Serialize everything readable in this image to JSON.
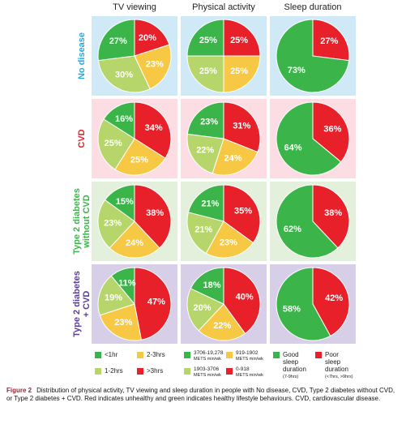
{
  "rows": [
    {
      "label": [
        "No disease"
      ],
      "color": "#29a8e0",
      "background": "#cfe9f7"
    },
    {
      "label": [
        "CVD"
      ],
      "color": "#e8202a",
      "background": "#fbdde3"
    },
    {
      "label": [
        "Type 2 diabetes",
        "without CVD"
      ],
      "color": "#3bb54a",
      "background": "#e3f1dc"
    },
    {
      "label": [
        "Type 2 diabetes",
        "+ CVD"
      ],
      "color": "#5b3c98",
      "background": "#d7cee7"
    }
  ],
  "chart_data": [
    {
      "type": "pie",
      "title": "TV viewing",
      "categories": [
        ">3hrs",
        "2-3hrs",
        "1-2hrs",
        "<1hr"
      ],
      "colors": [
        "#e8202a",
        "#f7c843",
        "#b6d66b",
        "#3bb54a"
      ],
      "pies": [
        {
          "values": [
            20,
            23,
            30,
            27
          ],
          "value_labels": [
            "20%",
            "23%",
            "30%",
            "27%"
          ]
        },
        {
          "values": [
            34,
            25,
            25,
            16
          ],
          "value_labels": [
            "34%",
            "25%",
            "25%",
            "16%"
          ]
        },
        {
          "values": [
            38,
            24,
            23,
            15
          ],
          "value_labels": [
            "38%",
            "24%",
            "23%",
            "15%"
          ]
        },
        {
          "values": [
            47,
            23,
            19,
            11
          ],
          "value_labels": [
            "47%",
            "23%",
            "19%",
            "11%"
          ]
        }
      ]
    },
    {
      "type": "pie",
      "title": "Physical activity",
      "categories": [
        "0-918",
        "919-1902",
        "1903-3706",
        "3706-19,278"
      ],
      "category_unit": "METS min/wk",
      "colors": [
        "#e8202a",
        "#f7c843",
        "#b6d66b",
        "#3bb54a"
      ],
      "pies": [
        {
          "values": [
            25,
            25,
            25,
            25
          ],
          "value_labels": [
            "25%",
            "25%",
            "25%",
            "25%"
          ]
        },
        {
          "values": [
            31,
            24,
            22,
            23
          ],
          "value_labels": [
            "31%",
            "24%",
            "22%",
            "23%"
          ]
        },
        {
          "values": [
            35,
            23,
            21,
            21
          ],
          "value_labels": [
            "35%",
            "23%",
            "21%",
            "21%"
          ]
        },
        {
          "values": [
            40,
            22,
            20,
            18
          ],
          "value_labels": [
            "40%",
            "22%",
            "20%",
            "18%"
          ]
        }
      ]
    },
    {
      "type": "pie",
      "title": "Sleep duration",
      "categories": [
        "Poor sleep duration",
        "Good sleep duration"
      ],
      "category_notes": [
        "(<7hrs, >9hrs)",
        "(7-9hrs)"
      ],
      "colors": [
        "#e8202a",
        "#3bb54a"
      ],
      "pies": [
        {
          "values": [
            27,
            73
          ],
          "value_labels": [
            "27%",
            "73%"
          ]
        },
        {
          "values": [
            36,
            64
          ],
          "value_labels": [
            "36%",
            "64%"
          ]
        },
        {
          "values": [
            38,
            62
          ],
          "value_labels": [
            "38%",
            "62%"
          ]
        },
        {
          "values": [
            42,
            58
          ],
          "value_labels": [
            "42%",
            "58%"
          ]
        }
      ]
    }
  ],
  "caption": {
    "label": "Figure 2",
    "text": "Distribution of physical activity, TV viewing and sleep duration in people with No disease, CVD, Type 2 diabetes without CVD, or Type 2 diabetes + CVD. Red indicates unhealthy and green indicates healthy lifestyle behaviours. CVD, cardiovascular disease."
  }
}
